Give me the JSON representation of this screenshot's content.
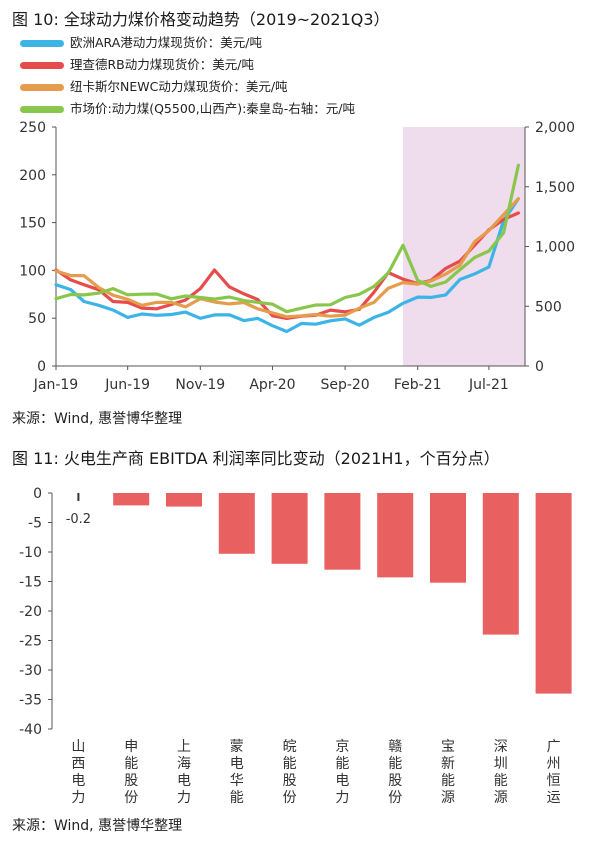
{
  "charts": {
    "c1": {
      "title": "图 10: 全球动力煤价格变动趋势（2019~2021Q3）",
      "source": "来源：Wind, 惠誉博华整理"
    },
    "c2": {
      "title": "图 11: 火电生产商 EBITDA 利润率同比变动（2021H1，个百分点）",
      "source": "来源：Wind, 惠誉博华整理"
    }
  },
  "chart_data": [
    {
      "type": "line",
      "title": "图 10: 全球动力煤价格变动趋势（2019~2021Q3）",
      "x_ticks": [
        "Jan-19",
        "Jun-19",
        "Nov-19",
        "Apr-20",
        "Sep-20",
        "Feb-21",
        "Jul-21"
      ],
      "x": [
        "2019-01",
        "2019-02",
        "2019-03",
        "2019-04",
        "2019-05",
        "2019-06",
        "2019-07",
        "2019-08",
        "2019-09",
        "2019-10",
        "2019-11",
        "2019-12",
        "2020-01",
        "2020-02",
        "2020-03",
        "2020-04",
        "2020-05",
        "2020-06",
        "2020-07",
        "2020-08",
        "2020-09",
        "2020-10",
        "2020-11",
        "2020-12",
        "2021-01",
        "2021-02",
        "2021-03",
        "2021-04",
        "2021-05",
        "2021-06",
        "2021-07",
        "2021-08",
        "2021-09"
      ],
      "y_left_ticks": [
        "0",
        "50",
        "100",
        "150",
        "200",
        "250"
      ],
      "y_right_ticks": [
        "0",
        "500",
        "1,000",
        "1,500",
        "2,000"
      ],
      "ylim_left": [
        0,
        250
      ],
      "ylim_right": [
        0,
        2000
      ],
      "highlight_range": [
        "2021-01",
        "2021-09"
      ],
      "highlight_color": "#efdcec",
      "grid": false,
      "legend_position": "top-left",
      "series": [
        {
          "name": "欧洲ARA港动力煤现货价：美元/吨",
          "axis": "left",
          "color": "#3cb4e6",
          "values": [
            85,
            78,
            70,
            62,
            58,
            53,
            52,
            54,
            55,
            54,
            52,
            53,
            52,
            50,
            48,
            42,
            38,
            42,
            45,
            48,
            47,
            45,
            50,
            55,
            68,
            70,
            72,
            76,
            88,
            98,
            104,
            150,
            175
          ]
        },
        {
          "name": "理查德RB动力煤现货价：美元/吨",
          "axis": "left",
          "color": "#e74c4c",
          "values": [
            98,
            92,
            85,
            78,
            70,
            65,
            60,
            62,
            62,
            70,
            82,
            98,
            85,
            75,
            68,
            55,
            48,
            52,
            55,
            56,
            58,
            60,
            75,
            100,
            90,
            85,
            92,
            100,
            110,
            128,
            140,
            155,
            160
          ]
        },
        {
          "name": "纽卡斯尔NEWC动力煤现货价：美元/吨",
          "axis": "left",
          "color": "#e59c4c",
          "values": [
            100,
            96,
            92,
            84,
            74,
            68,
            66,
            65,
            66,
            64,
            68,
            68,
            66,
            64,
            62,
            55,
            50,
            55,
            52,
            52,
            55,
            58,
            68,
            82,
            85,
            88,
            88,
            95,
            108,
            128,
            142,
            160,
            175
          ]
        },
        {
          "name": "市场价:动力煤(Q5500,山西产):秦皇岛-右轴：元/吨",
          "axis": "right",
          "color": "#88c74c",
          "values": [
            580,
            582,
            600,
            620,
            630,
            610,
            600,
            590,
            580,
            575,
            570,
            575,
            560,
            555,
            540,
            500,
            470,
            480,
            500,
            530,
            560,
            600,
            680,
            760,
            1020,
            720,
            650,
            720,
            800,
            900,
            980,
            1100,
            1680
          ]
        }
      ]
    },
    {
      "type": "bar",
      "title": "图 11: 火电生产商 EBITDA 利润率同比变动（2021H1，个百分点）",
      "categories": [
        "山西电力",
        "申能股份",
        "上海电力",
        "蒙电华能",
        "皖能股份",
        "京能电力",
        "赣能股份",
        "宝新能源",
        "深圳能源",
        "广州恒运"
      ],
      "values": [
        -0.2,
        -2.1,
        -2.3,
        -10.3,
        -12.0,
        -13.0,
        -14.3,
        -15.2,
        -24.0,
        -34.0
      ],
      "data_labels": [
        "-0.2",
        "",
        "",
        "",
        "",
        "",
        "",
        "",
        "",
        ""
      ],
      "y_ticks": [
        "0",
        "-5",
        "-10",
        "-15",
        "-20",
        "-25",
        "-30",
        "-35",
        "-40"
      ],
      "ylim": [
        -40,
        0
      ],
      "color": "#e96060",
      "grid": false
    }
  ]
}
